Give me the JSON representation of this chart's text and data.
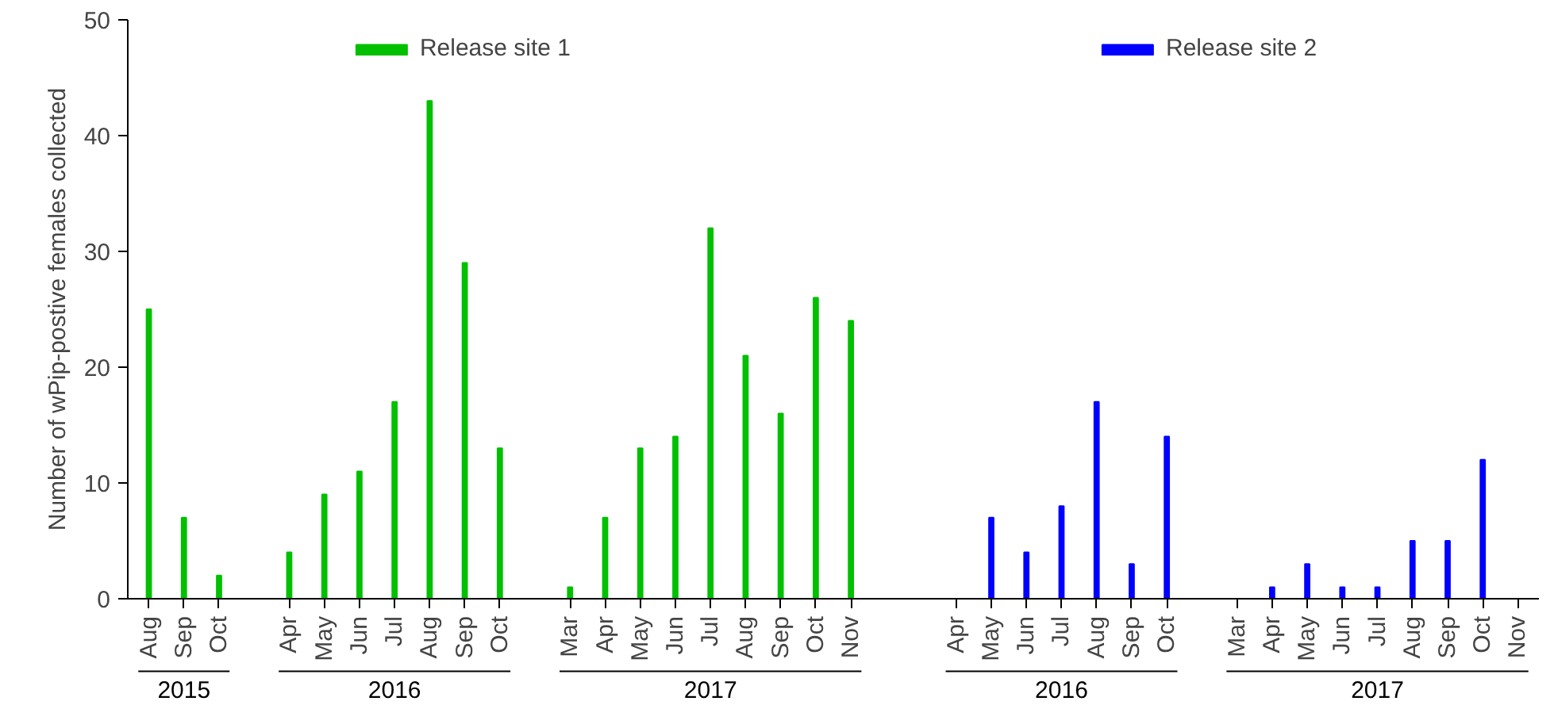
{
  "chart_data": {
    "type": "bar",
    "ylabel": "Number of wPip-postive females collected",
    "categories": [
      "Aug",
      "Sep",
      "Oct",
      null,
      "Apr",
      "May",
      "Jun",
      "Jul",
      "Aug",
      "Sep",
      "Oct",
      null,
      "Mar",
      "Apr",
      "May",
      "Jun",
      "Jul",
      "Aug",
      "Sep",
      "Oct",
      "Nov",
      null,
      null,
      "Apr",
      "May",
      "Jun",
      "Jul",
      "Aug",
      "Sep",
      "Oct",
      null,
      "Mar",
      "Apr",
      "May",
      "Jun",
      "Jul",
      "Aug",
      "Sep",
      "Oct",
      "Nov"
    ],
    "series": [
      {
        "name": "Release site 1",
        "color": "#00c000",
        "values": [
          25,
          7,
          2,
          null,
          4,
          9,
          11,
          17,
          43,
          29,
          13,
          null,
          1,
          7,
          13,
          14,
          32,
          21,
          16,
          26,
          24,
          null,
          null,
          null,
          null,
          null,
          null,
          null,
          null,
          null,
          null,
          null,
          null,
          null,
          null,
          null,
          null,
          null,
          null,
          null
        ]
      },
      {
        "name": "Release site 2",
        "color": "#0000ff",
        "values": [
          null,
          null,
          null,
          null,
          null,
          null,
          null,
          null,
          null,
          null,
          null,
          null,
          null,
          null,
          null,
          null,
          null,
          null,
          null,
          null,
          null,
          null,
          null,
          0,
          7,
          4,
          8,
          17,
          3,
          14,
          null,
          0,
          1,
          3,
          1,
          1,
          5,
          5,
          12,
          0
        ]
      }
    ],
    "ylim": [
      0,
      50
    ],
    "yticks": [
      0,
      10,
      20,
      30,
      40,
      50
    ],
    "grid": false,
    "legend": "top",
    "annotations": [
      "2015",
      "2016",
      "2017",
      "2016",
      "2017"
    ]
  }
}
